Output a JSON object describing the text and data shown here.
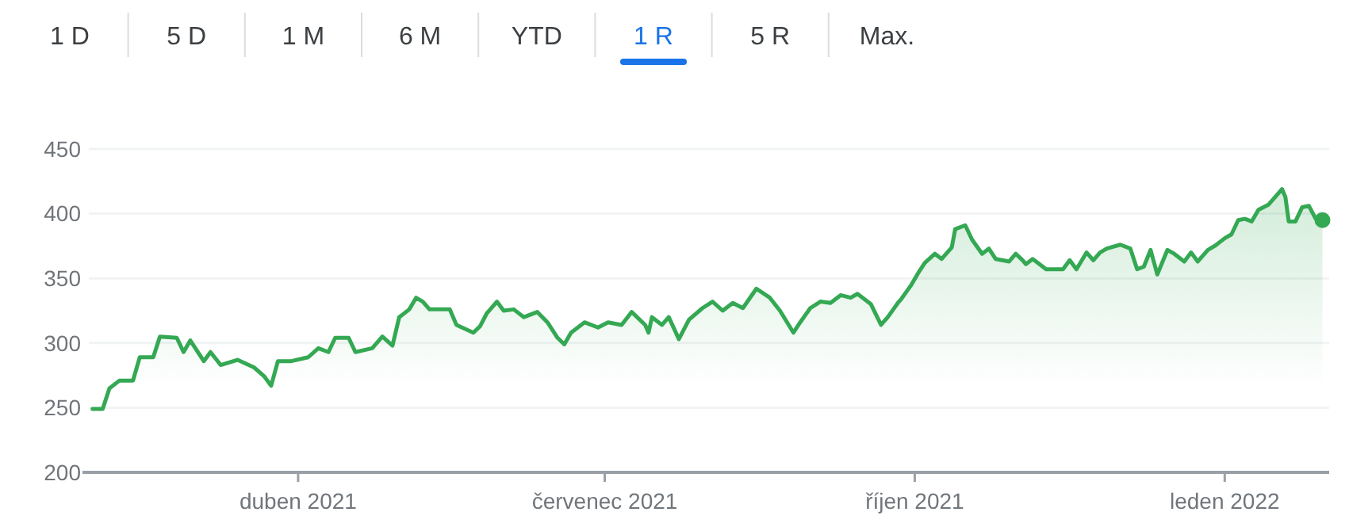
{
  "chart_data": {
    "type": "area",
    "annotations": [
      "1 D",
      "5 D",
      "1 M",
      "6 M",
      "YTD",
      "1 R",
      "5 R",
      "Max."
    ],
    "xlim": [
      "2021-01-27",
      "2022-02-01"
    ],
    "xticks": [
      {
        "value": "2021-04-01",
        "label": "duben 2021"
      },
      {
        "value": "2021-07-01",
        "label": "červenec 2021"
      },
      {
        "value": "2021-10-01",
        "label": "říjen 2021"
      },
      {
        "value": "2022-01-01",
        "label": "leden 2022"
      }
    ],
    "ylim": [
      200,
      450
    ],
    "yticks": [
      200,
      250,
      300,
      350,
      400,
      450
    ],
    "grid": "y",
    "series": [
      {
        "color": "#34a853",
        "x": [
          "2021-01-30",
          "2021-02-02",
          "2021-02-04",
          "2021-02-07",
          "2021-02-11",
          "2021-02-13",
          "2021-02-17",
          "2021-02-19",
          "2021-02-24",
          "2021-02-26",
          "2021-02-28",
          "2021-03-04",
          "2021-03-06",
          "2021-03-09",
          "2021-03-14",
          "2021-03-19",
          "2021-03-22",
          "2021-03-24",
          "2021-03-26",
          "2021-03-30",
          "2021-04-04",
          "2021-04-07",
          "2021-04-10",
          "2021-04-12",
          "2021-04-16",
          "2021-04-18",
          "2021-04-23",
          "2021-04-26",
          "2021-04-29",
          "2021-05-01",
          "2021-05-04",
          "2021-05-06",
          "2021-05-08",
          "2021-05-10",
          "2021-05-16",
          "2021-05-18",
          "2021-05-23",
          "2021-05-25",
          "2021-05-27",
          "2021-05-30",
          "2021-06-01",
          "2021-06-04",
          "2021-06-07",
          "2021-06-11",
          "2021-06-14",
          "2021-06-17",
          "2021-06-19",
          "2021-06-21",
          "2021-06-25",
          "2021-06-29",
          "2021-07-02",
          "2021-07-06",
          "2021-07-09",
          "2021-07-13",
          "2021-07-14",
          "2021-07-15",
          "2021-07-18",
          "2021-07-20",
          "2021-07-23",
          "2021-07-26",
          "2021-07-30",
          "2021-08-02",
          "2021-08-05",
          "2021-08-08",
          "2021-08-11",
          "2021-08-15",
          "2021-08-19",
          "2021-08-22",
          "2021-08-26",
          "2021-08-28",
          "2021-08-31",
          "2021-09-03",
          "2021-09-06",
          "2021-09-09",
          "2021-09-12",
          "2021-09-14",
          "2021-09-18",
          "2021-09-21",
          "2021-09-23",
          "2021-09-26",
          "2021-09-27",
          "2021-09-30",
          "2021-10-02",
          "2021-10-04",
          "2021-10-07",
          "2021-10-09",
          "2021-10-12",
          "2021-10-13",
          "2021-10-16",
          "2021-10-18",
          "2021-10-21",
          "2021-10-23",
          "2021-10-25",
          "2021-10-29",
          "2021-10-31",
          "2021-11-02",
          "2021-11-03",
          "2021-11-05",
          "2021-11-09",
          "2021-11-14",
          "2021-11-16",
          "2021-11-18",
          "2021-11-21",
          "2021-11-23",
          "2021-11-25",
          "2021-11-27",
          "2021-12-01",
          "2021-12-04",
          "2021-12-06",
          "2021-12-08",
          "2021-12-10",
          "2021-12-12",
          "2021-12-15",
          "2021-12-17",
          "2021-12-20",
          "2021-12-22",
          "2021-12-24",
          "2021-12-27",
          "2021-12-29",
          "2022-01-01",
          "2022-01-03",
          "2022-01-05",
          "2022-01-07",
          "2022-01-09",
          "2022-01-11",
          "2022-01-14",
          "2022-01-18",
          "2022-01-19",
          "2022-01-20",
          "2022-01-22",
          "2022-01-24",
          "2022-01-26",
          "2022-01-28",
          "2022-01-30"
        ],
        "values": [
          249,
          249,
          265,
          271,
          271,
          289,
          289,
          305,
          304,
          293,
          302,
          286,
          293,
          283,
          287,
          281,
          274,
          267,
          286,
          286,
          289,
          296,
          293,
          304,
          304,
          293,
          296,
          305,
          298,
          320,
          326,
          335,
          332,
          326,
          326,
          314,
          308,
          313,
          323,
          332,
          325,
          326,
          320,
          324,
          316,
          304,
          299,
          308,
          316,
          312,
          316,
          314,
          324,
          314,
          308,
          320,
          314,
          320,
          303,
          318,
          327,
          332,
          325,
          331,
          327,
          342,
          335,
          325,
          308,
          316,
          327,
          332,
          331,
          337,
          335,
          338,
          330,
          314,
          320,
          331,
          334,
          345,
          354,
          362,
          369,
          365,
          374,
          388,
          391,
          380,
          369,
          373,
          365,
          363,
          369,
          364,
          361,
          365,
          357,
          357,
          364,
          357,
          370,
          364,
          370,
          373,
          376,
          373,
          357,
          359,
          372,
          353,
          372,
          369,
          363,
          370,
          363,
          372,
          375,
          381,
          384,
          395,
          396,
          394,
          403,
          407,
          419,
          413,
          394,
          394,
          405,
          406,
          396,
          395
        ]
      },
      {
        "type": "scatter",
        "color": "#34a853",
        "x": [
          "2022-01-30"
        ],
        "values": [
          395
        ]
      }
    ]
  }
}
